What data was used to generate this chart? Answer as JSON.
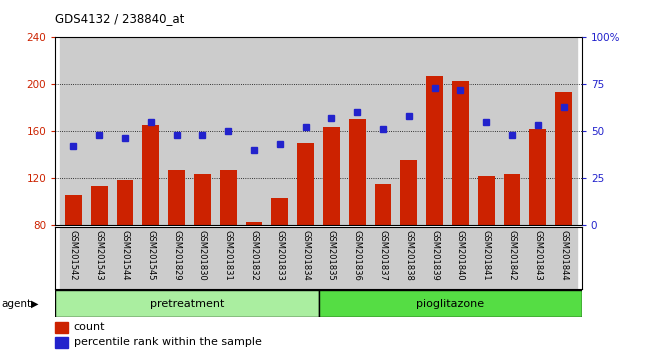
{
  "title": "GDS4132 / 238840_at",
  "samples": [
    "GSM201542",
    "GSM201543",
    "GSM201544",
    "GSM201545",
    "GSM201829",
    "GSM201830",
    "GSM201831",
    "GSM201832",
    "GSM201833",
    "GSM201834",
    "GSM201835",
    "GSM201836",
    "GSM201837",
    "GSM201838",
    "GSM201839",
    "GSM201840",
    "GSM201841",
    "GSM201842",
    "GSM201843",
    "GSM201844"
  ],
  "counts": [
    105,
    113,
    118,
    165,
    127,
    123,
    127,
    82,
    103,
    150,
    163,
    170,
    115,
    135,
    207,
    203,
    122,
    123,
    162,
    193
  ],
  "percentiles": [
    42,
    48,
    46,
    55,
    48,
    48,
    50,
    40,
    43,
    52,
    57,
    60,
    51,
    58,
    73,
    72,
    55,
    48,
    53,
    63
  ],
  "pretreatment_count": 10,
  "pioglitazone_count": 10,
  "bar_color": "#cc2200",
  "dot_color": "#2222cc",
  "ylim_left": [
    80,
    240
  ],
  "ylim_right": [
    0,
    100
  ],
  "yticks_left": [
    80,
    120,
    160,
    200,
    240
  ],
  "yticks_right": [
    0,
    25,
    50,
    75,
    100
  ],
  "pretreatment_color": "#aaeea0",
  "pioglitazone_color": "#55dd44",
  "col_bg_color": "#cccccc",
  "plot_bg_color": "#ffffff"
}
